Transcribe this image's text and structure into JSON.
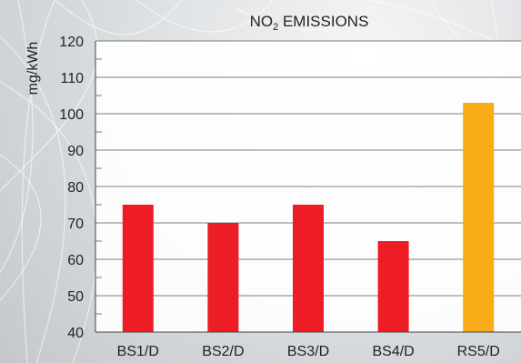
{
  "chart_data": {
    "type": "bar",
    "title_main": "NO",
    "title_sub": "2",
    "title_rest": " EMISSIONS",
    "ylabel": "mg/kWh",
    "categories": [
      "BS1/D",
      "BS2/D",
      "BS3/D",
      "BS4/D",
      "RS5/D"
    ],
    "values": [
      75,
      70,
      75,
      65,
      103
    ],
    "bar_colors": [
      "#ee1c25",
      "#ee1c25",
      "#ee1c25",
      "#ee1c25",
      "#f8ac17"
    ],
    "ylim": [
      40,
      120
    ],
    "yticks": [
      40,
      50,
      60,
      70,
      80,
      90,
      100,
      110,
      120
    ],
    "grid": true
  }
}
